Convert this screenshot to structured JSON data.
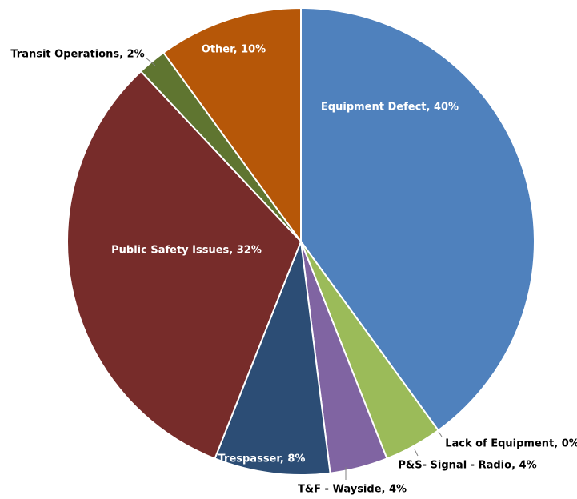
{
  "chart_data": {
    "type": "pie",
    "start_angle_deg": 0,
    "direction": "clockwise",
    "slices": [
      {
        "name": "Equipment Defect",
        "value": 40,
        "label": "Equipment Defect, 40%",
        "color": "#4f81bd"
      },
      {
        "name": "Lack of Equipment",
        "value": 0,
        "label": "Lack of Equipment, 0%",
        "color": "#c0504d"
      },
      {
        "name": "P&S- Signal - Radio",
        "value": 4,
        "label": "P&S- Signal - Radio, 4%",
        "color": "#9bbb59"
      },
      {
        "name": "T&F - Wayside",
        "value": 4,
        "label": "T&F - Wayside, 4%",
        "color": "#8064a2"
      },
      {
        "name": "Trespasser",
        "value": 8,
        "label": "Trespasser, 8%",
        "color": "#2c4d75"
      },
      {
        "name": "Public Safety Issues",
        "value": 32,
        "label": "Public Safety Issues, 32%",
        "color": "#772c2a"
      },
      {
        "name": "Transit Operations",
        "value": 2,
        "label": "Transit Operations, 2%",
        "color": "#5f7530"
      },
      {
        "name": "Other",
        "value": 10,
        "label": "Other, 10%",
        "color": "#b65708"
      }
    ]
  }
}
